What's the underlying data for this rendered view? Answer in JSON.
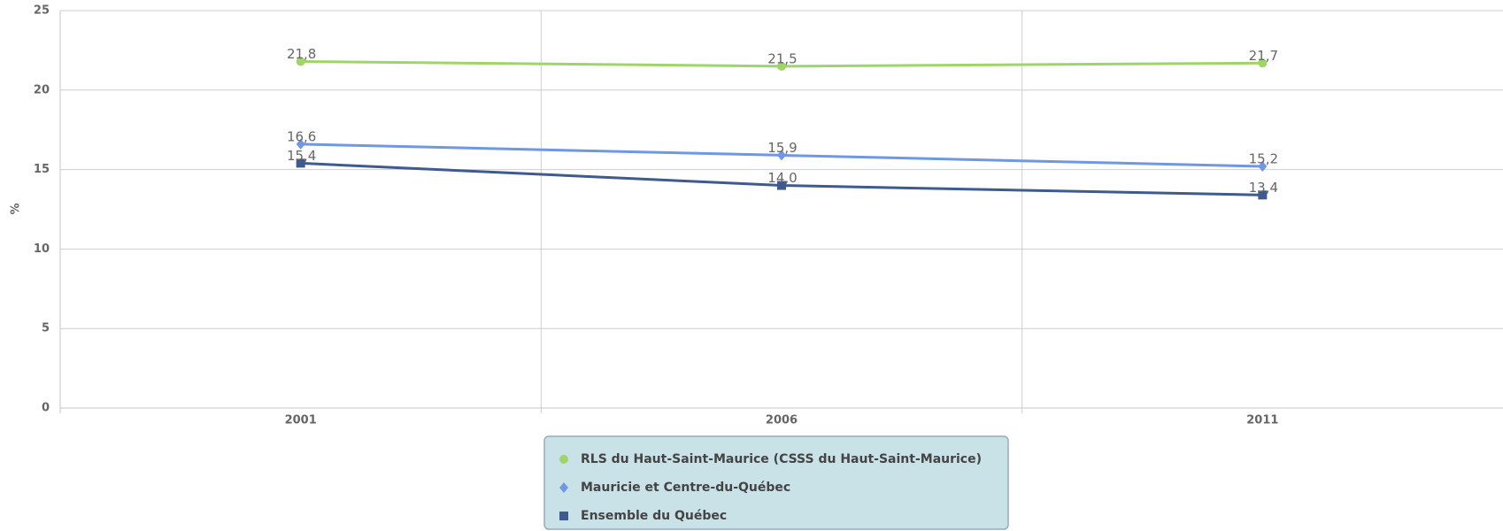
{
  "chart_data": {
    "type": "line",
    "y_label": "%",
    "categories": [
      "2001",
      "2006",
      "2011"
    ],
    "series": [
      {
        "name": "RLS du Haut-Saint-Maurice (CSSS du Haut-Saint-Maurice)",
        "color": "#9fd468",
        "marker": "circle",
        "values": [
          21.8,
          21.5,
          21.7
        ],
        "value_labels": [
          "21,8",
          "21,5",
          "21,7"
        ]
      },
      {
        "name": "Mauricie et Centre-du-Québec",
        "color": "#6f97e3",
        "marker": "diamond",
        "values": [
          16.6,
          15.9,
          15.2
        ],
        "value_labels": [
          "16,6",
          "15,9",
          "15,2"
        ]
      },
      {
        "name": "Ensemble du Québec",
        "color": "#3e5a8e",
        "marker": "square",
        "values": [
          15.4,
          14.0,
          13.4
        ],
        "value_labels": [
          "15,4",
          "14,0",
          "13,4"
        ]
      }
    ],
    "ylim": [
      0,
      25
    ],
    "yticks": [
      0,
      5,
      10,
      15,
      20,
      25
    ],
    "grid": true
  }
}
